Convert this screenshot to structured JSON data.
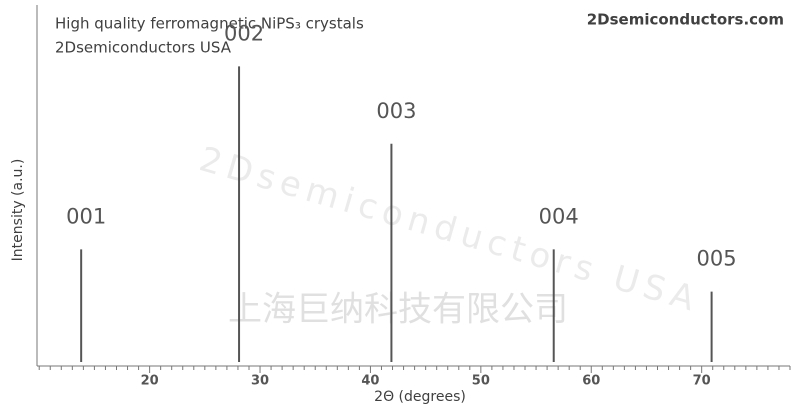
{
  "chart_data": {
    "type": "stem",
    "title": "High quality ferromagnetic NiPS₃ crystals",
    "subtitle": "2Dsemiconductors USA",
    "brand": "2Dsemiconductors.com",
    "watermarks": [
      "2Dsemiconductors USA",
      "上海巨纳科技有限公司"
    ],
    "x_label": "2Θ (degrees)",
    "y_label": "Intensity (a.u.)",
    "labels": [
      "001",
      "002",
      "003",
      "004",
      "005"
    ],
    "x": [
      13.8,
      28.1,
      41.9,
      56.6,
      70.9
    ],
    "values": [
      32,
      84,
      62,
      32,
      20
    ],
    "color": "#555555",
    "xlim": [
      9.8,
      78
    ],
    "ylim": [
      0,
      100
    ],
    "xticks": [
      20,
      30,
      40,
      50,
      60,
      70
    ],
    "xminorticks": [
      10,
      11,
      12,
      13,
      14,
      15,
      16,
      17,
      18,
      19,
      21,
      22,
      23,
      24,
      25,
      26,
      27,
      28,
      29,
      31,
      32,
      33,
      34,
      35,
      36,
      37,
      38,
      39,
      41,
      42,
      43,
      44,
      45,
      46,
      47,
      48,
      49,
      51,
      52,
      53,
      54,
      55,
      56,
      57,
      58,
      59,
      61,
      62,
      63,
      64,
      65,
      66,
      67,
      68,
      69,
      71,
      72,
      73,
      74,
      75,
      76,
      77,
      78
    ]
  }
}
